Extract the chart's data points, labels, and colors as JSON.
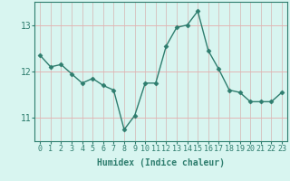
{
  "xlabel": "Humidex (Indice chaleur)",
  "ylabel": "",
  "x": [
    0,
    1,
    2,
    3,
    4,
    5,
    6,
    7,
    8,
    9,
    10,
    11,
    12,
    13,
    14,
    15,
    16,
    17,
    18,
    19,
    20,
    21,
    22,
    23
  ],
  "y": [
    12.35,
    12.1,
    12.15,
    11.95,
    11.75,
    11.85,
    11.7,
    11.6,
    10.75,
    11.05,
    11.75,
    11.75,
    12.55,
    12.95,
    13.0,
    13.3,
    12.45,
    12.05,
    11.6,
    11.55,
    11.35,
    11.35,
    11.35,
    11.55
  ],
  "line_color": "#2e7d6e",
  "marker": "D",
  "marker_size": 2.5,
  "linewidth": 1.0,
  "bg_color": "#d8f5f0",
  "red_grid_color": "#e8b0b0",
  "teal_grid_color": "#b8ddd8",
  "xlabel_fontsize": 7,
  "tick_fontsize": 6,
  "ylim": [
    10.5,
    13.5
  ],
  "yticks": [
    11,
    12,
    13
  ],
  "xticks": [
    0,
    1,
    2,
    3,
    4,
    5,
    6,
    7,
    8,
    9,
    10,
    11,
    12,
    13,
    14,
    15,
    16,
    17,
    18,
    19,
    20,
    21,
    22,
    23
  ],
  "xlim": [
    -0.5,
    23.5
  ]
}
